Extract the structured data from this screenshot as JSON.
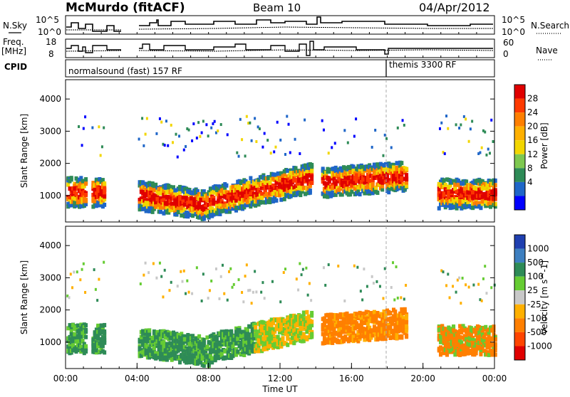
{
  "header": {
    "station": "McMurdo (fitACF)",
    "beam": "Beam 10",
    "date": "04/Apr/2012"
  },
  "top_panels": {
    "nsky_label": "N.Sky",
    "nsky_ticks": [
      "10^5",
      "10^0"
    ],
    "nsearch_label": "N.Search",
    "nsearch_ticks": [
      "10^5",
      "10^0"
    ],
    "freq_label_1": "Freq.",
    "freq_label_2": "[MHz]",
    "freq_ticks": [
      "18",
      "8"
    ],
    "nave_label": "Nave",
    "nave_ticks": [
      "60",
      "0"
    ],
    "cpid_label": "CPID",
    "cpid_programs": [
      {
        "label": "normalsound (fast) 157 RF",
        "start_hour": 0
      },
      {
        "label": "themis 3300 RF",
        "start_hour": 18
      }
    ]
  },
  "chart_data": [
    {
      "type": "heatmap",
      "title": "",
      "xlabel": "",
      "ylabel": "Slant Range [km]",
      "xlim": [
        0,
        24
      ],
      "ylim": [
        180,
        4600
      ],
      "ytick_labels": [
        "1000",
        "2000",
        "3000",
        "4000"
      ],
      "ytick_values": [
        1000,
        2000,
        3000,
        4000
      ],
      "colorbar": {
        "label": "Power [dB]",
        "tick_labels": [
          "28",
          "24",
          "20",
          "16",
          "12",
          "8",
          "4"
        ],
        "colors": [
          "#e00000",
          "#ff3a00",
          "#ff7f00",
          "#ffb000",
          "#f2d600",
          "#7ec850",
          "#2e8b57",
          "#1f66c8",
          "#0000ff"
        ]
      }
    },
    {
      "type": "heatmap",
      "title": "",
      "xlabel": "Time UT",
      "ylabel": "Slant Range [km]",
      "xlim": [
        0,
        24
      ],
      "ylim": [
        180,
        4600
      ],
      "xtick_labels": [
        "00:00",
        "04:00",
        "08:00",
        "12:00",
        "16:00",
        "20:00",
        "00:00"
      ],
      "xtick_values": [
        0,
        4,
        8,
        12,
        16,
        20,
        24
      ],
      "ytick_labels": [
        "1000",
        "2000",
        "3000",
        "4000"
      ],
      "ytick_values": [
        1000,
        2000,
        3000,
        4000
      ],
      "colorbar": {
        "label": "Velocity [m s^-1]",
        "tick_labels": [
          "1000",
          "500",
          "100",
          "25",
          "-25",
          "-100",
          "-500",
          "-1000"
        ],
        "colors": [
          "#1f3fb0",
          "#3d7fc0",
          "#2e8b57",
          "#66cc33",
          "#c8c8c8",
          "#ffb000",
          "#ff7f00",
          "#ff4500",
          "#e00000"
        ]
      }
    }
  ]
}
